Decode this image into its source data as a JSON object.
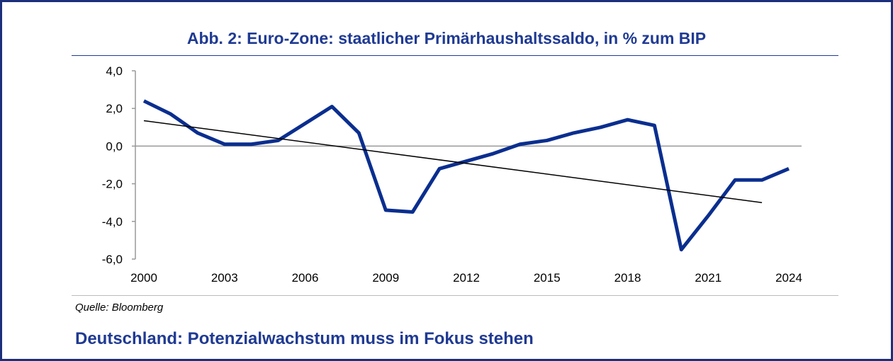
{
  "chart_data": {
    "type": "line",
    "title": "Abb. 2: Euro-Zone: staatlicher Primärhaushaltssaldo, in % zum BIP",
    "xlabel": "",
    "ylabel": "",
    "ylim": [
      -6,
      4
    ],
    "xlim": [
      2000,
      2024
    ],
    "yticks": [
      "4,0",
      "2,0",
      "0,0",
      "-2,0",
      "-4,0",
      "-6,0"
    ],
    "ytick_values": [
      4,
      2,
      0,
      -2,
      -4,
      -6
    ],
    "xticks": [
      "2000",
      "2003",
      "2006",
      "2009",
      "2012",
      "2015",
      "2018",
      "2021",
      "2024"
    ],
    "xtick_values": [
      2000,
      2003,
      2006,
      2009,
      2012,
      2015,
      2018,
      2021,
      2024
    ],
    "series": [
      {
        "name": "Primärhaushaltssaldo",
        "color": "#0a2e8f",
        "x": [
          2000,
          2001,
          2002,
          2003,
          2004,
          2005,
          2006,
          2007,
          2008,
          2009,
          2010,
          2011,
          2012,
          2013,
          2014,
          2015,
          2016,
          2017,
          2018,
          2019,
          2020,
          2021,
          2022,
          2023,
          2024
        ],
        "values": [
          2.4,
          1.7,
          0.7,
          0.1,
          0.1,
          0.3,
          1.2,
          2.1,
          0.7,
          -3.4,
          -3.5,
          -1.2,
          -0.8,
          -0.4,
          0.1,
          0.3,
          0.7,
          1.0,
          1.4,
          1.1,
          -5.5,
          -3.7,
          -1.8,
          -1.8,
          -1.2
        ]
      },
      {
        "name": "Trend",
        "color": "#000000",
        "x": [
          2000,
          2023
        ],
        "values": [
          1.35,
          -3.0
        ]
      }
    ]
  },
  "source": "Quelle: Bloomberg",
  "subtitle": "Deutschland: Potenzialwachstum muss im Fokus stehen"
}
